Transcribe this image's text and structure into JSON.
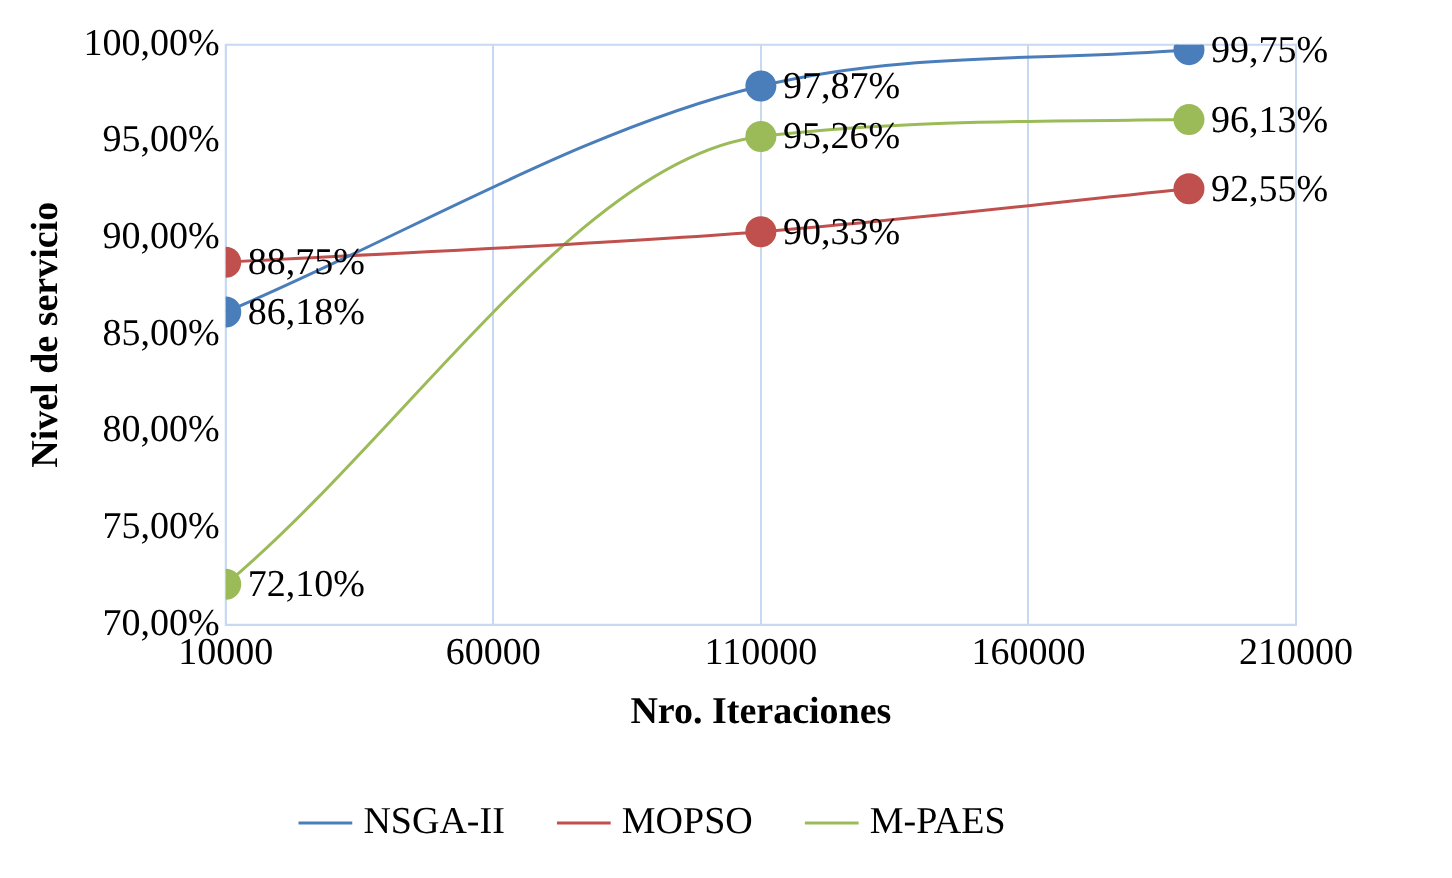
{
  "chart_data": {
    "type": "line",
    "xlabel": "Nro. Iteraciones",
    "ylabel": "Nivel de servicio",
    "x": [
      10000,
      110000,
      190000
    ],
    "series": [
      {
        "name": "NSGA-II",
        "color": "#4a7ebb",
        "values": [
          86.18,
          97.87,
          99.75
        ],
        "value_labels": [
          "86,18%",
          "97,87%",
          "99,75%"
        ]
      },
      {
        "name": "MOPSO",
        "color": "#c0504d",
        "values": [
          88.75,
          90.33,
          92.55
        ],
        "value_labels": [
          "88,75%",
          "90,33%",
          "92,55%"
        ]
      },
      {
        "name": "M-PAES",
        "color": "#9bbb59",
        "values": [
          72.1,
          95.26,
          96.13
        ],
        "value_labels": [
          "72,10%",
          "95,26%",
          "96,13%"
        ]
      }
    ],
    "xlim": [
      10000,
      210000
    ],
    "xticks": [
      10000,
      60000,
      110000,
      160000,
      210000
    ],
    "ylim": [
      70,
      100
    ],
    "yticks": [
      {
        "value": 70,
        "label": "70,00%"
      },
      {
        "value": 75,
        "label": "75,00%"
      },
      {
        "value": 80,
        "label": "80,00%"
      },
      {
        "value": 85,
        "label": "85,00%"
      },
      {
        "value": 90,
        "label": "90,00%"
      },
      {
        "value": 95,
        "label": "95,00%"
      },
      {
        "value": 100,
        "label": "100,00%"
      }
    ],
    "grid": "x",
    "legend": "bottom",
    "marker": "circle",
    "line_style": "solid"
  }
}
